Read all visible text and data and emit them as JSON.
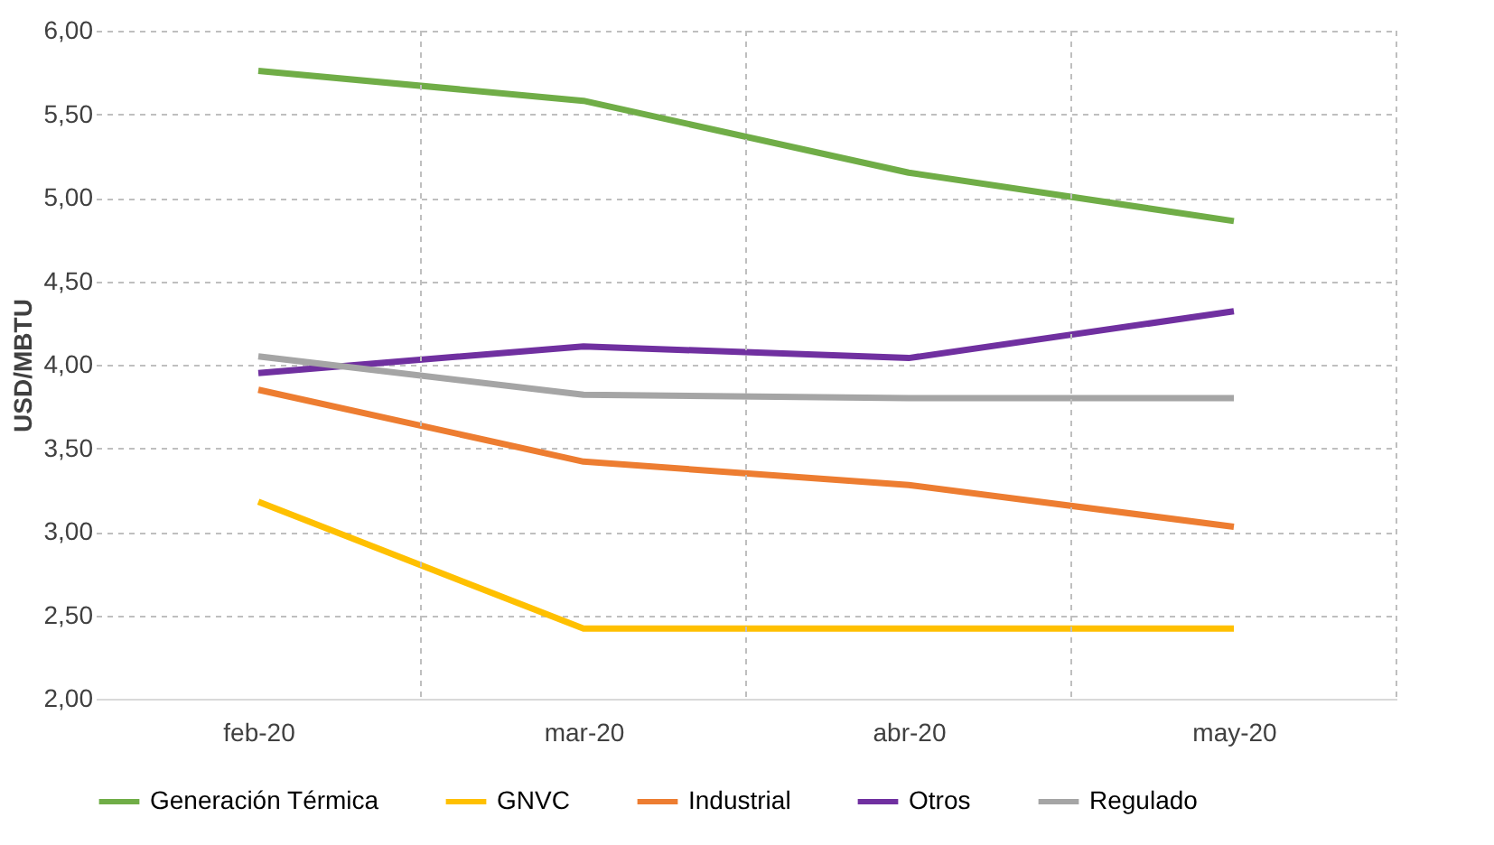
{
  "chart_data": {
    "type": "line",
    "ylabel": "USD/MBTU",
    "categories": [
      "feb-20",
      "mar-20",
      "abr-20",
      "may-20"
    ],
    "series": [
      {
        "name": "Generación Térmica",
        "color": "#70ad47",
        "values": [
          5.76,
          5.58,
          5.15,
          4.86
        ]
      },
      {
        "name": "GNVC",
        "color": "#ffc000",
        "values": [
          3.18,
          2.42,
          2.42,
          2.42
        ]
      },
      {
        "name": "Industrial",
        "color": "#ed7d31",
        "values": [
          3.85,
          3.42,
          3.28,
          3.03
        ]
      },
      {
        "name": "Otros",
        "color": "#7030a0",
        "values": [
          3.95,
          4.11,
          4.04,
          4.32
        ]
      },
      {
        "name": "Regulado",
        "color": "#a5a5a5",
        "values": [
          4.05,
          3.82,
          3.8,
          3.8
        ]
      }
    ],
    "ylim": [
      2,
      6
    ],
    "yticks": [
      {
        "value": 2,
        "label": "2,00"
      },
      {
        "value": 2.5,
        "label": "2,50"
      },
      {
        "value": 3,
        "label": "3,00"
      },
      {
        "value": 3.5,
        "label": "3,50"
      },
      {
        "value": 4,
        "label": "4,00"
      },
      {
        "value": 4.5,
        "label": "4,50"
      },
      {
        "value": 5,
        "label": "5,00"
      },
      {
        "value": 5.5,
        "label": "5,50"
      },
      {
        "value": 6,
        "label": "6,00"
      }
    ],
    "grid": true,
    "legend": "bottom",
    "marker": "none",
    "line_style": "solid"
  }
}
